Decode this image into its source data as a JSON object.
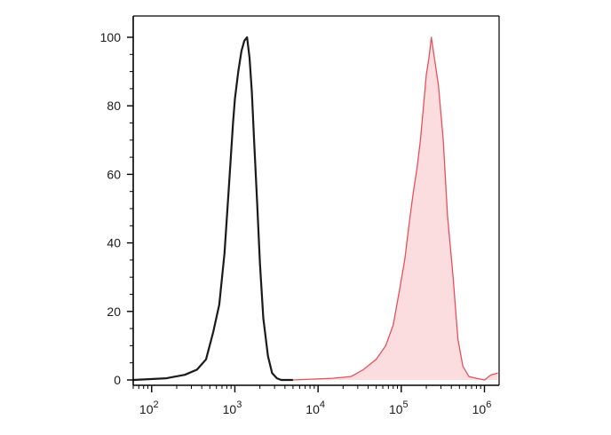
{
  "chart_data": {
    "type": "area",
    "title": "",
    "xlabel": "",
    "ylabel": "",
    "x_scale": "log",
    "xlim": [
      60,
      1500000
    ],
    "ylim": [
      0,
      100
    ],
    "x_ticks": [
      {
        "value": 100,
        "base": "10",
        "exp": "2"
      },
      {
        "value": 1000,
        "base": "10",
        "exp": "3"
      },
      {
        "value": 10000,
        "base": "10",
        "exp": "4"
      },
      {
        "value": 100000,
        "base": "10",
        "exp": "5"
      },
      {
        "value": 1000000,
        "base": "10",
        "exp": "6"
      }
    ],
    "y_ticks": [
      "0",
      "20",
      "40",
      "60",
      "80",
      "100"
    ],
    "grid": false,
    "legend": "none",
    "series": [
      {
        "color": "#1a1a1a",
        "fill": "none",
        "x": [
          60,
          150,
          250,
          350,
          450,
          550,
          650,
          750,
          850,
          950,
          1000,
          1100,
          1200,
          1300,
          1400,
          1500,
          1600,
          1700,
          1850,
          2000,
          2200,
          2500,
          2800,
          3200,
          3600,
          4200,
          5000
        ],
        "y": [
          0,
          0.5,
          1.5,
          3,
          6,
          14,
          22,
          37,
          57,
          75,
          82,
          90,
          96,
          99,
          100,
          94,
          84,
          70,
          52,
          34,
          18,
          7,
          2,
          0.5,
          0,
          0,
          0
        ]
      },
      {
        "color": "#e8505b",
        "fill": "#fbdde0",
        "x": [
          5000,
          15000,
          25000,
          35000,
          50000,
          65000,
          80000,
          95000,
          110000,
          125000,
          140000,
          155000,
          170000,
          185000,
          200000,
          215000,
          230000,
          250000,
          280000,
          320000,
          360000,
          420000,
          480000,
          550000,
          650000,
          800000,
          1000000,
          1200000,
          1450000
        ],
        "y": [
          0,
          0.5,
          1,
          3,
          6,
          10,
          16,
          26,
          35,
          46,
          55,
          62,
          70,
          80,
          89,
          94,
          100,
          94,
          86,
          70,
          48,
          30,
          12,
          4,
          1,
          0.5,
          0,
          1.5,
          2
        ]
      }
    ]
  }
}
